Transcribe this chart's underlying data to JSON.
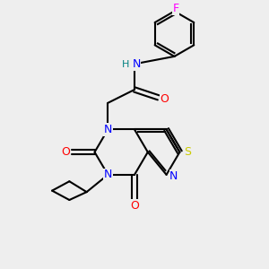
{
  "bg_color": "#eeeeee",
  "bond_color": "#000000",
  "atoms": {
    "F": "#ff00ff",
    "O": "#ff0000",
    "N": "#0000ff",
    "S": "#cccc00",
    "H": "#008080",
    "C": "#000000"
  },
  "lw": 1.5
}
